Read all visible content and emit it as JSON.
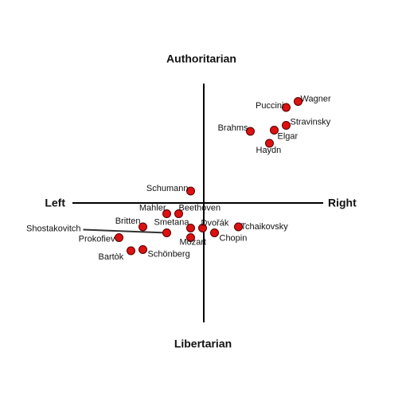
{
  "chart_data": {
    "type": "scatter",
    "top_label": "Authoritarian",
    "bottom_label": "Libertarian",
    "left_label": "Left",
    "right_label": "Right",
    "color": "#dd1111",
    "xlim": [
      -11,
      10
    ],
    "ylim": [
      -10,
      10
    ],
    "points": [
      {
        "name": "Wagner",
        "x": 7.9,
        "y": 8.5
      },
      {
        "name": "Puccini",
        "x": 6.9,
        "y": 8.0
      },
      {
        "name": "Stravinsky",
        "x": 6.9,
        "y": 6.5
      },
      {
        "name": "Brahms",
        "x": 3.9,
        "y": 6.0
      },
      {
        "name": "Elgar",
        "x": 5.9,
        "y": 6.1
      },
      {
        "name": "Haydn",
        "x": 5.5,
        "y": 5.0
      },
      {
        "name": "Schumann",
        "x": -1.1,
        "y": 1.0
      },
      {
        "name": "Mahler",
        "x": -3.1,
        "y": -0.9
      },
      {
        "name": "Beethoven",
        "x": -2.1,
        "y": -0.9
      },
      {
        "name": "Britten",
        "x": -5.1,
        "y": -2.0
      },
      {
        "name": "Smetana",
        "x": -1.1,
        "y": -2.1
      },
      {
        "name": "Dvořák",
        "x": -0.1,
        "y": -2.1
      },
      {
        "name": "Tchaikovsky",
        "x": 2.9,
        "y": -2.0
      },
      {
        "name": "Shostakovitch",
        "x": -3.1,
        "y": -2.5
      },
      {
        "name": "Mozart",
        "x": -1.1,
        "y": -2.9
      },
      {
        "name": "Chopin",
        "x": 0.9,
        "y": -2.5
      },
      {
        "name": "Prokofiev",
        "x": -7.1,
        "y": -2.9
      },
      {
        "name": "Bartòk",
        "x": -6.1,
        "y": -4.0
      },
      {
        "name": "Schönberg",
        "x": -5.1,
        "y": -3.9
      }
    ]
  }
}
